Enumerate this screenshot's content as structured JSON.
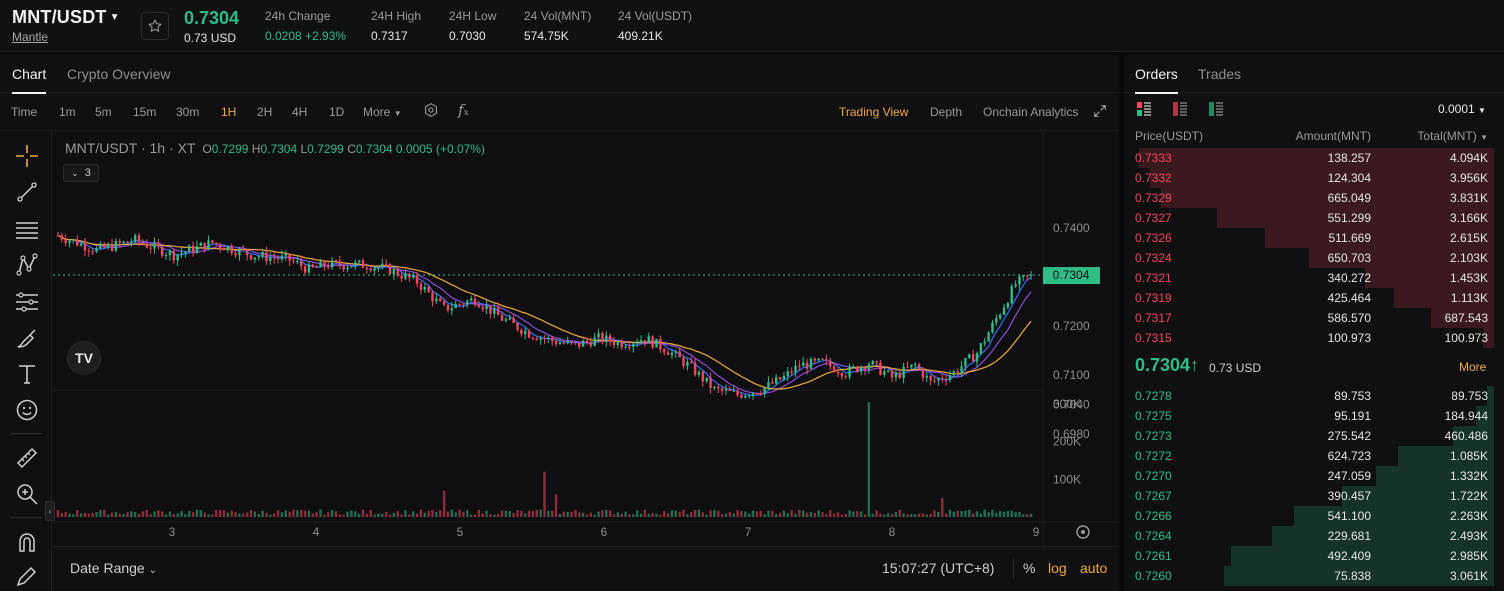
{
  "header": {
    "pair": "MNT/USDT",
    "pair_sub": "Mantle",
    "last_price": "0.7304",
    "last_usd": "0.73 USD",
    "stats": [
      {
        "label": "24h Change",
        "value": "0.0208 +2.93%",
        "positive": true
      },
      {
        "label": "24H High",
        "value": "0.7317"
      },
      {
        "label": "24H Low",
        "value": "0.7030"
      },
      {
        "label": "24 Vol(MNT)",
        "value": "574.75K"
      },
      {
        "label": "24 Vol(USDT)",
        "value": "409.21K"
      }
    ]
  },
  "chart_tabs": [
    "Chart",
    "Crypto Overview"
  ],
  "toolbar": {
    "time_label": "Time",
    "intervals": [
      "1m",
      "5m",
      "15m",
      "30m",
      "1H",
      "2H",
      "4H",
      "1D"
    ],
    "active_interval": "1H",
    "more_label": "More",
    "views": [
      "Trading View",
      "Depth",
      "Onchain Analytics"
    ],
    "active_view": "Trading View"
  },
  "legend": {
    "symbol": "MNT/USDT · 1h · XT",
    "open": "0.7299",
    "high": "0.7304",
    "low": "0.7299",
    "close": "0.7304",
    "change": "0.0005 (+0.07%)",
    "indicator_count": "3"
  },
  "bottom_bar": {
    "date_range": "Date Range",
    "time": "15:07:27 (UTC+8)",
    "percent": "%",
    "log": "log",
    "auto": "auto"
  },
  "colors": {
    "up": "#2ebd85",
    "down": "#f6465d",
    "ma_short": "#2f6fff",
    "ma_mid": "#8a4dd8",
    "ma_long": "#f0a93a",
    "accent": "#f0a93a"
  },
  "chart_data": {
    "type": "candlestick",
    "price_axis_ticks": [
      "0.7400",
      "0.7200",
      "0.7100",
      "0.7040",
      "0.6980"
    ],
    "current_price_label": "0.7304",
    "volume_axis_ticks": [
      "300K",
      "200K",
      "100K"
    ],
    "x_ticks": [
      "3",
      "4",
      "5",
      "6",
      "7",
      "8",
      "9"
    ],
    "anchors": [
      [
        0,
        0.7385
      ],
      [
        10,
        0.7355
      ],
      [
        20,
        0.7375
      ],
      [
        30,
        0.7345
      ],
      [
        40,
        0.737
      ],
      [
        50,
        0.7345
      ],
      [
        60,
        0.7335
      ],
      [
        65,
        0.7315
      ],
      [
        70,
        0.7325
      ],
      [
        80,
        0.7325
      ],
      [
        86,
        0.7315
      ],
      [
        93,
        0.729
      ],
      [
        100,
        0.7235
      ],
      [
        108,
        0.7255
      ],
      [
        115,
        0.7215
      ],
      [
        122,
        0.7185
      ],
      [
        128,
        0.717
      ],
      [
        134,
        0.716
      ],
      [
        140,
        0.7175
      ],
      [
        146,
        0.7165
      ],
      [
        152,
        0.7175
      ],
      [
        158,
        0.715
      ],
      [
        164,
        0.7115
      ],
      [
        170,
        0.707
      ],
      [
        176,
        0.706
      ],
      [
        182,
        0.707
      ],
      [
        188,
        0.7095
      ],
      [
        192,
        0.712
      ],
      [
        198,
        0.7125
      ],
      [
        204,
        0.7105
      ],
      [
        210,
        0.7125
      ],
      [
        216,
        0.7095
      ],
      [
        222,
        0.712
      ],
      [
        226,
        0.7085
      ],
      [
        232,
        0.7105
      ],
      [
        238,
        0.7145
      ],
      [
        243,
        0.7215
      ],
      [
        248,
        0.7285
      ],
      [
        252,
        0.7304
      ]
    ],
    "volume_spikes": {
      "100": 70000,
      "126": 120000,
      "129": 60000,
      "210": 305000,
      "229": 50000
    },
    "ma_periods": [
      5,
      10,
      20
    ]
  },
  "orders": {
    "tabs": [
      "Orders",
      "Trades"
    ],
    "precision": "0.0001",
    "headers": [
      "Price(USDT)",
      "Amount(MNT)",
      "Total(MNT)"
    ],
    "asks": [
      {
        "price": "0.7333",
        "amount": "138.257",
        "total": "4.094K",
        "depth": 0.96
      },
      {
        "price": "0.7332",
        "amount": "124.304",
        "total": "3.956K",
        "depth": 0.93
      },
      {
        "price": "0.7329",
        "amount": "665.049",
        "total": "3.831K",
        "depth": 0.9
      },
      {
        "price": "0.7327",
        "amount": "551.299",
        "total": "3.166K",
        "depth": 0.75
      },
      {
        "price": "0.7326",
        "amount": "511.669",
        "total": "2.615K",
        "depth": 0.62
      },
      {
        "price": "0.7324",
        "amount": "650.703",
        "total": "2.103K",
        "depth": 0.5
      },
      {
        "price": "0.7321",
        "amount": "340.272",
        "total": "1.453K",
        "depth": 0.35
      },
      {
        "price": "0.7319",
        "amount": "425.464",
        "total": "1.113K",
        "depth": 0.27
      },
      {
        "price": "0.7317",
        "amount": "586.570",
        "total": "687.543",
        "depth": 0.17
      },
      {
        "price": "0.7315",
        "amount": "100.973",
        "total": "100.973",
        "depth": 0.03
      }
    ],
    "mid": {
      "price": "0.7304↑",
      "usd": "0.73 USD",
      "more": "More"
    },
    "bids": [
      {
        "price": "0.7278",
        "amount": "89.753",
        "total": "89.753",
        "depth": 0.02
      },
      {
        "price": "0.7275",
        "amount": "95.191",
        "total": "184.944",
        "depth": 0.05
      },
      {
        "price": "0.7273",
        "amount": "275.542",
        "total": "460.486",
        "depth": 0.11
      },
      {
        "price": "0.7272",
        "amount": "624.723",
        "total": "1.085K",
        "depth": 0.26
      },
      {
        "price": "0.7270",
        "amount": "247.059",
        "total": "1.332K",
        "depth": 0.32
      },
      {
        "price": "0.7267",
        "amount": "390.457",
        "total": "1.722K",
        "depth": 0.41
      },
      {
        "price": "0.7266",
        "amount": "541.100",
        "total": "2.263K",
        "depth": 0.54
      },
      {
        "price": "0.7264",
        "amount": "229.681",
        "total": "2.493K",
        "depth": 0.6
      },
      {
        "price": "0.7261",
        "amount": "492.409",
        "total": "2.985K",
        "depth": 0.71
      },
      {
        "price": "0.7260",
        "amount": "75.838",
        "total": "3.061K",
        "depth": 0.73
      }
    ]
  }
}
